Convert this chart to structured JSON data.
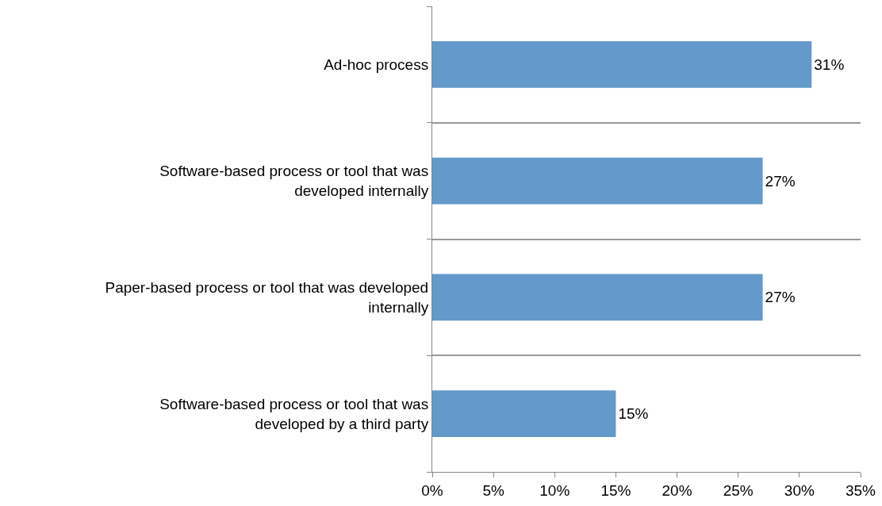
{
  "chart_data": {
    "type": "bar",
    "orientation": "horizontal",
    "categories": [
      "Ad-hoc process",
      "Software-based process or tool that was developed internally",
      "Paper-based process or tool that was developed internally",
      "Software-based process or tool that was developed by a third party"
    ],
    "values": [
      31,
      27,
      27,
      15
    ],
    "value_labels": [
      "31%",
      "27%",
      "27%",
      "15%"
    ],
    "color": "#6399cb",
    "xlim": [
      0,
      35
    ],
    "xticks": [
      {
        "value": 0,
        "label": "0%"
      },
      {
        "value": 5,
        "label": "5%"
      },
      {
        "value": 10,
        "label": "10%"
      },
      {
        "value": 15,
        "label": "15%"
      },
      {
        "value": 20,
        "label": "20%"
      },
      {
        "value": 25,
        "label": "25%"
      },
      {
        "value": 30,
        "label": "30%"
      },
      {
        "value": 35,
        "label": "35%"
      }
    ],
    "grid": "y",
    "legend": false
  }
}
